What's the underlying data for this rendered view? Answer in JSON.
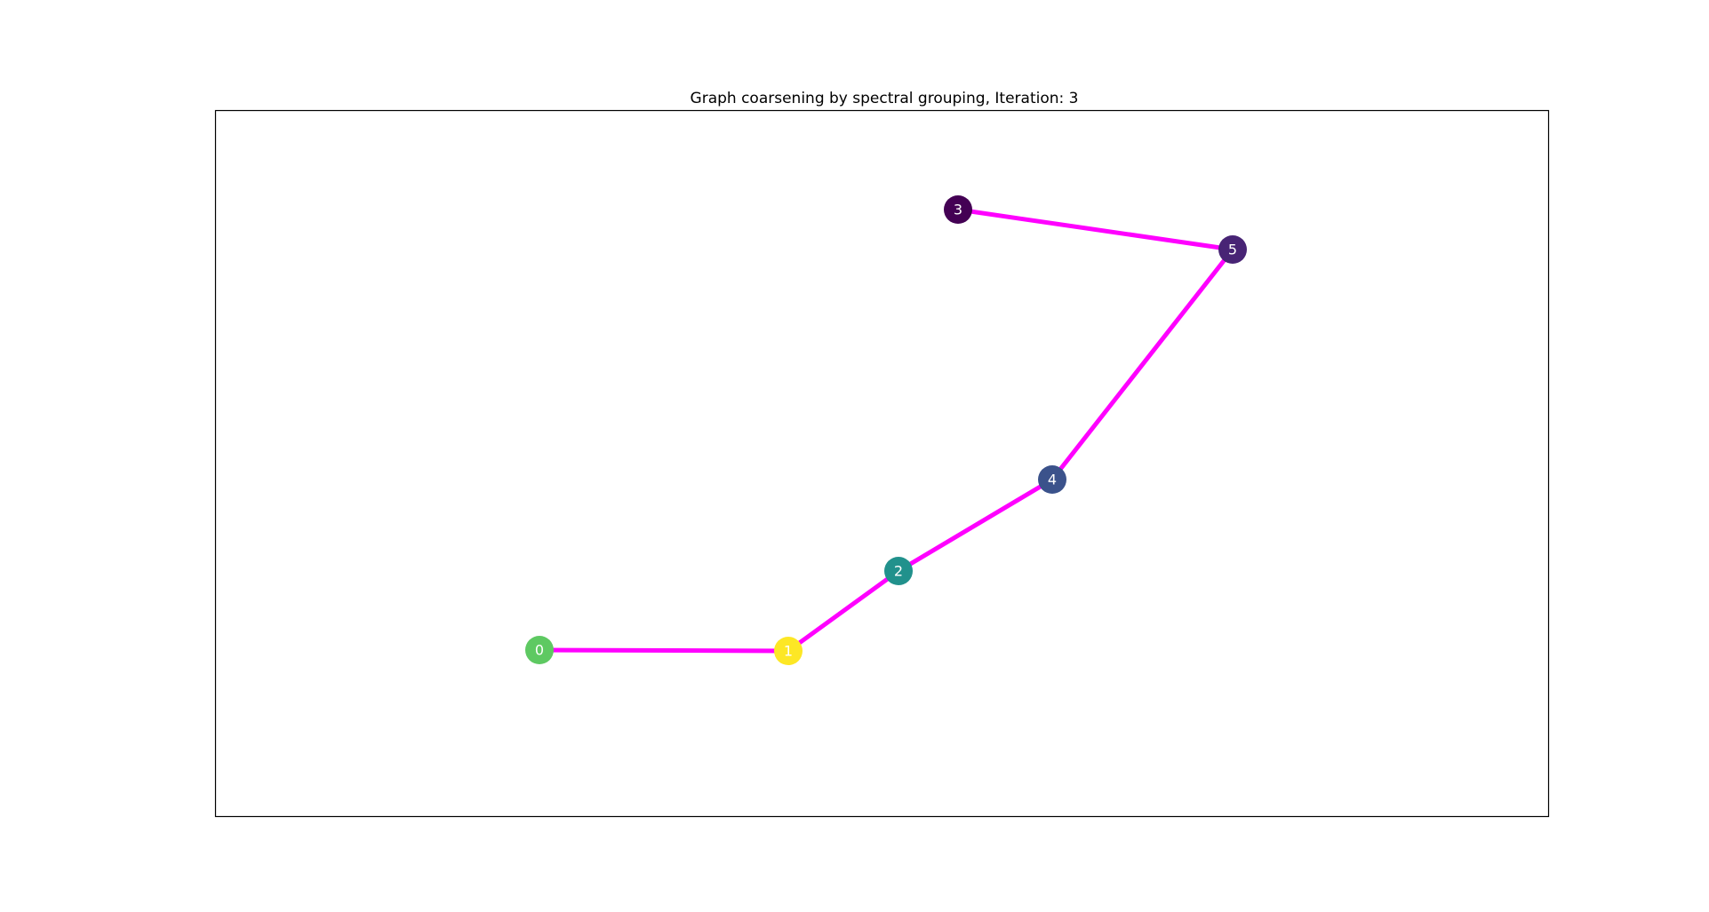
{
  "title": "Graph coarsening by spectral grouping, Iteration: 3",
  "edge_color": "#ff00ff",
  "nodes": [
    {
      "id": "0",
      "label": "0",
      "color": "#5ec962"
    },
    {
      "id": "1",
      "label": "1",
      "color": "#fde725"
    },
    {
      "id": "2",
      "label": "2",
      "color": "#21918c"
    },
    {
      "id": "3",
      "label": "3",
      "color": "#440154"
    },
    {
      "id": "4",
      "label": "4",
      "color": "#3b528b"
    },
    {
      "id": "5",
      "label": "5",
      "color": "#482475"
    }
  ],
  "edges": [
    {
      "from": "0",
      "to": "1"
    },
    {
      "from": "1",
      "to": "2"
    },
    {
      "from": "2",
      "to": "4"
    },
    {
      "from": "4",
      "to": "5"
    },
    {
      "from": "5",
      "to": "3"
    }
  ]
}
